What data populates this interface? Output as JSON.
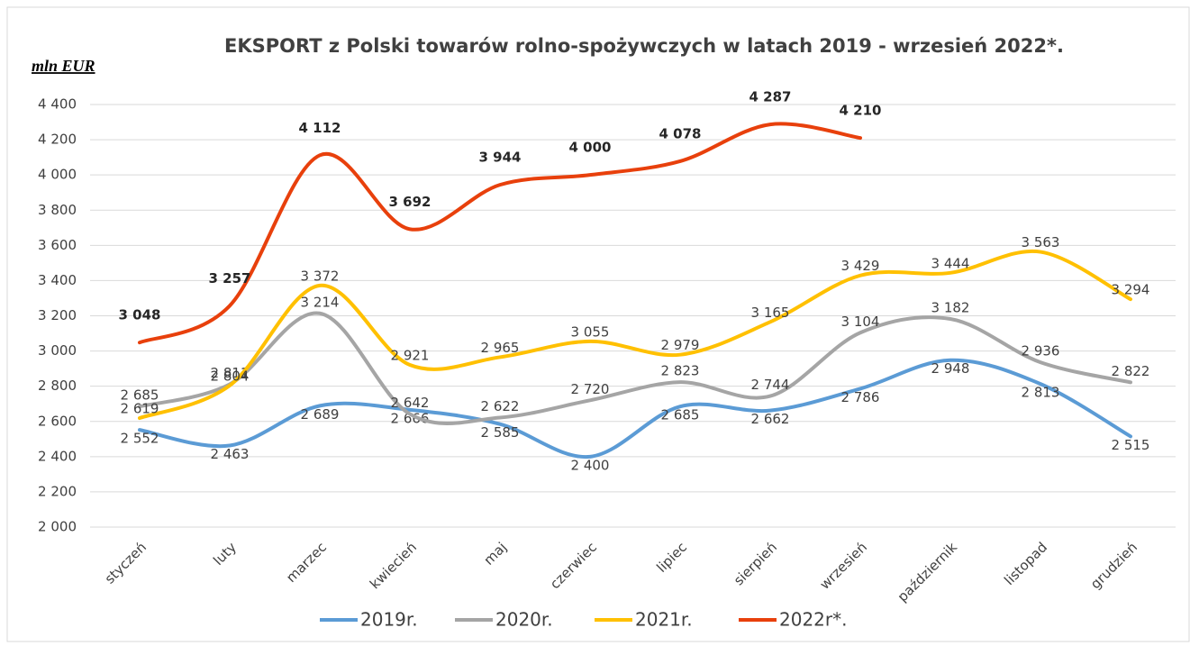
{
  "chart_data": {
    "type": "line",
    "title": "EKSPORT z Polski towarów rolno-spożywczych w latach 2019 - wrzesień 2022*.",
    "y_axis_label": "mln EUR",
    "categories": [
      "styczeń",
      "luty",
      "marzec",
      "kwiecień",
      "maj",
      "czerwiec",
      "lipiec",
      "sierpień",
      "wrzesień",
      "październik",
      "listopad",
      "grudzień"
    ],
    "series": [
      {
        "name": "2019r.",
        "color": "#5b9bd5",
        "values": [
          2552,
          2463,
          2689,
          2666,
          2585,
          2400,
          2685,
          2662,
          2786,
          2948,
          2813,
          2515
        ],
        "value_labels": [
          "2 552",
          "2 463",
          "2 689",
          "2 666",
          "2 585",
          "2 400",
          "2 685",
          "2 662",
          "2 786",
          "2 948",
          "2 813",
          "2 515"
        ]
      },
      {
        "name": "2020r.",
        "color": "#a5a5a5",
        "values": [
          2685,
          2811,
          3214,
          2642,
          2622,
          2720,
          2823,
          2744,
          3104,
          3182,
          2936,
          2822
        ],
        "value_labels": [
          "2 685",
          "2 811",
          "3 214",
          "2 642",
          "2 622",
          "2 720",
          "2 823",
          "2 744",
          "3 104",
          "3 182",
          "2 936",
          "2 822"
        ]
      },
      {
        "name": "2021r.",
        "color": "#ffc000",
        "values": [
          2619,
          2804,
          3372,
          2921,
          2965,
          3055,
          2979,
          3165,
          3429,
          3444,
          3563,
          3294
        ],
        "value_labels": [
          "2 619",
          "2 804",
          "3 372",
          "2 921",
          "2 965",
          "3 055",
          "2 979",
          "3 165",
          "3 429",
          "3 444",
          "3 563",
          "3 294"
        ]
      },
      {
        "name": "2022r*.",
        "color": "#e8400c",
        "values": [
          3048,
          3257,
          4112,
          3692,
          3944,
          4000,
          4078,
          4287,
          4210,
          null,
          null,
          null
        ],
        "value_labels": [
          "3 048",
          "3 257",
          "4 112",
          "3 692",
          "3 944",
          "4 000",
          "4 078",
          "4 287",
          "4 210",
          null,
          null,
          null
        ]
      }
    ],
    "ylim": [
      2000,
      4400
    ],
    "yticks": [
      {
        "value": 2000,
        "label": "2 000"
      },
      {
        "value": 2200,
        "label": "2 200"
      },
      {
        "value": 2400,
        "label": "2 400"
      },
      {
        "value": 2600,
        "label": "2 600"
      },
      {
        "value": 2800,
        "label": "2 800"
      },
      {
        "value": 3000,
        "label": "3 000"
      },
      {
        "value": 3200,
        "label": "3 200"
      },
      {
        "value": 3400,
        "label": "3 400"
      },
      {
        "value": 3600,
        "label": "3 600"
      },
      {
        "value": 3800,
        "label": "3 800"
      },
      {
        "value": 4000,
        "label": "4 000"
      },
      {
        "value": 4200,
        "label": "4 200"
      },
      {
        "value": 4400,
        "label": "4 400"
      }
    ],
    "grid": true,
    "legend": "bottom"
  }
}
